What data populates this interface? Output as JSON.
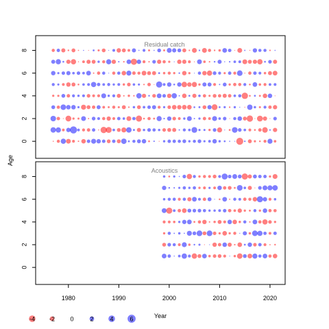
{
  "chart_data": {
    "type": "scatter",
    "subtype": "bubble",
    "ylabel": "Age",
    "xlabel": "Year",
    "xlim": [
      1973.5,
      2023
    ],
    "ylim": [
      -1.5,
      9.3
    ],
    "x_ticks": [
      1980,
      1990,
      2000,
      2010,
      2020
    ],
    "y_ticks": [
      0,
      2,
      4,
      6,
      8
    ],
    "panels": [
      {
        "title": "Residual catch",
        "x_start": 1977,
        "x_end": 2021,
        "ages": [
          0,
          1,
          2,
          3,
          4,
          5,
          6,
          7,
          8
        ]
      },
      {
        "title": "Acoustics",
        "x_start": 1999,
        "x_end": 2021,
        "ages": [
          1,
          2,
          3,
          4,
          5,
          6,
          7,
          8
        ]
      }
    ],
    "legend": {
      "values": [
        -4,
        -2,
        0,
        2,
        4,
        6
      ],
      "labels": [
        "-4",
        "-2",
        "0",
        "2",
        "4",
        "6"
      ]
    },
    "colors": {
      "negative": "#FF0000",
      "positive": "#0000FF",
      "fill_opacity": 0.5
    },
    "grid": false
  }
}
